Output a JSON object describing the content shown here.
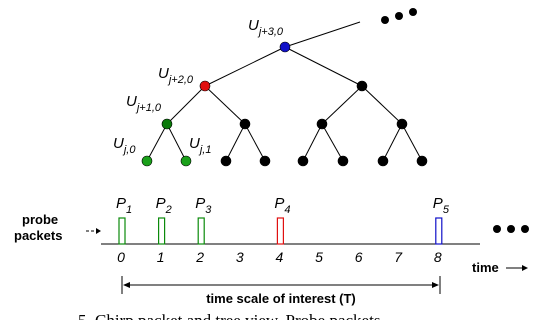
{
  "tree": {
    "node_labels": [
      {
        "base": "U",
        "sub": "j+3,0"
      },
      {
        "base": "U",
        "sub": "j+2,0"
      },
      {
        "base": "U",
        "sub": "j+1,0"
      },
      {
        "base": "U",
        "sub": "j,0"
      },
      {
        "base": "U",
        "sub": "j,1"
      }
    ],
    "colors": {
      "root": "#1010c8",
      "level2": "#e01010",
      "level1": "#0a7a0a",
      "leaf_highlight": "#1aa01a",
      "other": "#000000"
    }
  },
  "timeline": {
    "side_label_line1": "probe",
    "side_label_line2": "packets",
    "ticks": [
      "0",
      "1",
      "2",
      "3",
      "4",
      "5",
      "6",
      "7",
      "8"
    ],
    "axis_label": "time",
    "scale_label": "time scale of interest (T)",
    "packets": [
      {
        "base": "P",
        "sub": "1",
        "at": 0,
        "color": "#0a8a0a"
      },
      {
        "base": "P",
        "sub": "2",
        "at": 1,
        "color": "#0a8a0a"
      },
      {
        "base": "P",
        "sub": "3",
        "at": 2,
        "color": "#0a8a0a"
      },
      {
        "base": "P",
        "sub": "4",
        "at": 4,
        "color": "#e01010"
      },
      {
        "base": "P",
        "sub": "5",
        "at": 8,
        "color": "#1010c8"
      }
    ]
  },
  "caption_fragment": "5. Chirp packet and tree view. Probe packets"
}
